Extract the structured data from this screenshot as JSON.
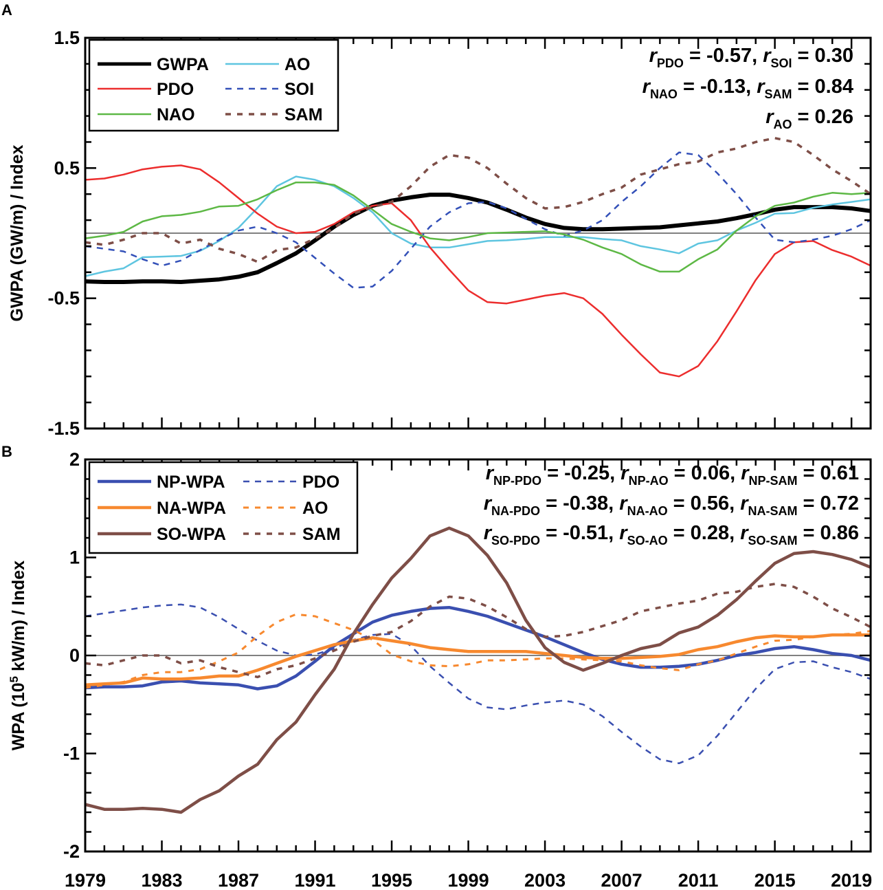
{
  "chart_data": [
    {
      "panel_label": "A",
      "type": "line",
      "ylabel": "GWPA (GW/m) / Index",
      "ylim": [
        -1.5,
        1.5
      ],
      "yticks": [
        -1.5,
        -0.5,
        0.5,
        1.5
      ],
      "ytick_labels": [
        "-1.5",
        "-0.5",
        "0.5",
        "1.5"
      ],
      "xlim": [
        1979,
        2020
      ],
      "zero_line": true,
      "legend": {
        "position": "top-left",
        "entries": [
          "GWPA",
          "AO",
          "PDO",
          "SOI",
          "NAO",
          "SAM"
        ]
      },
      "annotations": [
        [
          {
            "t": "r",
            "i": true
          },
          {
            "t": "PDO",
            "s": true
          },
          {
            "t": " = -0.57, "
          },
          {
            "t": "r",
            "i": true
          },
          {
            "t": "SOI",
            "s": true
          },
          {
            "t": " =   0.30"
          }
        ],
        [
          {
            "t": "r",
            "i": true
          },
          {
            "t": "NAO",
            "s": true
          },
          {
            "t": " = -0.13, "
          },
          {
            "t": "r",
            "i": true
          },
          {
            "t": "SAM",
            "s": true
          },
          {
            "t": " =  0.84"
          }
        ],
        [
          {
            "t": "r",
            "i": true
          },
          {
            "t": "AO",
            "s": true
          },
          {
            "t": " = 0.26"
          }
        ]
      ],
      "x": [
        1979,
        1980,
        1981,
        1982,
        1983,
        1984,
        1985,
        1986,
        1987,
        1988,
        1989,
        1990,
        1991,
        1992,
        1993,
        1994,
        1995,
        1996,
        1997,
        1998,
        1999,
        2000,
        2001,
        2002,
        2003,
        2004,
        2005,
        2006,
        2007,
        2008,
        2009,
        2010,
        2011,
        2012,
        2013,
        2014,
        2015,
        2016,
        2017,
        2018,
        2019,
        2020
      ],
      "series": [
        {
          "name": "GWPA",
          "color": "#000000",
          "width": 6,
          "dash": "",
          "values": [
            -0.37,
            -0.375,
            -0.375,
            -0.37,
            -0.37,
            -0.375,
            -0.365,
            -0.355,
            -0.335,
            -0.3,
            -0.23,
            -0.155,
            -0.055,
            0.05,
            0.14,
            0.21,
            0.25,
            0.275,
            0.295,
            0.295,
            0.27,
            0.235,
            0.18,
            0.12,
            0.07,
            0.04,
            0.03,
            0.03,
            0.035,
            0.04,
            0.045,
            0.06,
            0.075,
            0.09,
            0.115,
            0.145,
            0.18,
            0.2,
            0.2,
            0.2,
            0.19,
            0.17
          ]
        },
        {
          "name": "AO",
          "color": "#5ec5e0",
          "width": 2.5,
          "dash": "",
          "values": [
            -0.33,
            -0.295,
            -0.27,
            -0.185,
            -0.18,
            -0.175,
            -0.135,
            -0.06,
            0.04,
            0.195,
            0.36,
            0.435,
            0.41,
            0.36,
            0.27,
            0.16,
            0.0,
            -0.08,
            -0.11,
            -0.11,
            -0.085,
            -0.06,
            -0.055,
            -0.045,
            -0.03,
            -0.03,
            -0.03,
            -0.045,
            -0.055,
            -0.1,
            -0.125,
            -0.155,
            -0.08,
            -0.055,
            0.02,
            0.08,
            0.15,
            0.155,
            0.195,
            0.22,
            0.24,
            0.26
          ]
        },
        {
          "name": "PDO",
          "color": "#ec2d2d",
          "width": 2.5,
          "dash": "",
          "values": [
            0.41,
            0.42,
            0.45,
            0.49,
            0.51,
            0.52,
            0.49,
            0.39,
            0.27,
            0.15,
            0.05,
            0.0,
            0.01,
            0.07,
            0.16,
            0.21,
            0.23,
            0.1,
            -0.11,
            -0.28,
            -0.44,
            -0.53,
            -0.54,
            -0.51,
            -0.48,
            -0.46,
            -0.5,
            -0.62,
            -0.78,
            -0.93,
            -1.07,
            -1.1,
            -1.02,
            -0.83,
            -0.6,
            -0.36,
            -0.16,
            -0.07,
            -0.06,
            -0.13,
            -0.18,
            -0.25
          ]
        },
        {
          "name": "SOI",
          "color": "#3350b8",
          "width": 2.5,
          "dash": "9,8",
          "values": [
            -0.1,
            -0.12,
            -0.14,
            -0.2,
            -0.25,
            -0.21,
            -0.13,
            -0.05,
            0.02,
            0.05,
            0.0,
            -0.07,
            -0.19,
            -0.31,
            -0.42,
            -0.41,
            -0.29,
            -0.12,
            0.05,
            0.16,
            0.23,
            0.24,
            0.19,
            0.11,
            0.03,
            -0.02,
            0.02,
            0.1,
            0.24,
            0.36,
            0.5,
            0.62,
            0.6,
            0.46,
            0.3,
            0.12,
            -0.05,
            -0.07,
            -0.05,
            -0.02,
            0.03,
            0.1
          ]
        },
        {
          "name": "NAO",
          "color": "#5db845",
          "width": 2.5,
          "dash": "",
          "values": [
            -0.04,
            -0.02,
            0.01,
            0.09,
            0.13,
            0.14,
            0.165,
            0.205,
            0.21,
            0.26,
            0.33,
            0.39,
            0.39,
            0.37,
            0.29,
            0.18,
            0.07,
            0.01,
            -0.04,
            -0.055,
            -0.03,
            0.0,
            0.005,
            0.01,
            0.015,
            -0.01,
            -0.05,
            -0.11,
            -0.16,
            -0.24,
            -0.295,
            -0.295,
            -0.2,
            -0.125,
            0.02,
            0.13,
            0.21,
            0.235,
            0.28,
            0.31,
            0.3,
            0.31
          ]
        },
        {
          "name": "SAM",
          "color": "#7e4e47",
          "width": 3.5,
          "dash": "8,9",
          "values": [
            -0.07,
            -0.09,
            -0.05,
            0.0,
            0.0,
            -0.08,
            -0.05,
            -0.12,
            -0.16,
            -0.22,
            -0.13,
            -0.11,
            -0.04,
            0.04,
            0.15,
            0.2,
            0.24,
            0.36,
            0.51,
            0.6,
            0.58,
            0.5,
            0.38,
            0.27,
            0.19,
            0.2,
            0.24,
            0.3,
            0.35,
            0.45,
            0.49,
            0.53,
            0.55,
            0.62,
            0.65,
            0.7,
            0.73,
            0.7,
            0.6,
            0.49,
            0.4,
            0.3
          ]
        }
      ]
    },
    {
      "panel_label": "B",
      "type": "line",
      "ylabel": "WPA (10⁵ kW/m) / Index",
      "ylabel_parts": {
        "pre": "WPA (10",
        "sup": "5",
        "post": " kW/m) / Index"
      },
      "ylim": [
        -2,
        2
      ],
      "yticks": [
        -2,
        -1,
        0,
        1,
        2
      ],
      "ytick_labels": [
        "-2",
        "-1",
        "0",
        "1",
        "2"
      ],
      "xlim": [
        1979,
        2020
      ],
      "xticks": [
        1979,
        1983,
        1987,
        1991,
        1995,
        1999,
        2003,
        2007,
        2011,
        2015,
        2019
      ],
      "xtick_labels": [
        "1979",
        "1983",
        "1987",
        "1991",
        "1995",
        "1999",
        "2003",
        "2007",
        "2011",
        "2015",
        "2019"
      ],
      "zero_line": true,
      "legend": {
        "position": "top-left",
        "entries": [
          "NP-WPA",
          "PDO",
          "NA-WPA",
          "AO",
          "SO-WPA",
          "SAM"
        ]
      },
      "annotations": [
        [
          {
            "t": "r",
            "i": true
          },
          {
            "t": "NP-PDO",
            "s": true
          },
          {
            "t": " = -0.25, "
          },
          {
            "t": "r",
            "i": true
          },
          {
            "t": "NP-AO",
            "s": true
          },
          {
            "t": " =  0.06, "
          },
          {
            "t": "r",
            "i": true
          },
          {
            "t": "NP-SAM",
            "s": true
          },
          {
            "t": " =  0.61"
          }
        ],
        [
          {
            "t": "r",
            "i": true
          },
          {
            "t": "NA-PDO",
            "s": true
          },
          {
            "t": " = -0.38, "
          },
          {
            "t": "r",
            "i": true
          },
          {
            "t": "NA-AO",
            "s": true
          },
          {
            "t": " =  0.56, "
          },
          {
            "t": "r",
            "i": true
          },
          {
            "t": "NA-SAM",
            "s": true
          },
          {
            "t": " =  0.72"
          }
        ],
        [
          {
            "t": "r",
            "i": true
          },
          {
            "t": "SO-PDO",
            "s": true
          },
          {
            "t": " = -0.51, "
          },
          {
            "t": "r",
            "i": true
          },
          {
            "t": "SO-AO",
            "s": true
          },
          {
            "t": " =  0.28, "
          },
          {
            "t": "r",
            "i": true
          },
          {
            "t": "SO-SAM",
            "s": true
          },
          {
            "t": " =  0.86"
          }
        ]
      ],
      "x": [
        1979,
        1980,
        1981,
        1982,
        1983,
        1984,
        1985,
        1986,
        1987,
        1988,
        1989,
        1990,
        1991,
        1992,
        1993,
        1994,
        1995,
        1996,
        1997,
        1998,
        1999,
        2000,
        2001,
        2002,
        2003,
        2004,
        2005,
        2006,
        2007,
        2008,
        2009,
        2010,
        2011,
        2012,
        2013,
        2014,
        2015,
        2016,
        2017,
        2018,
        2019,
        2020
      ],
      "series": [
        {
          "name": "NP-WPA",
          "color": "#3a4fb0",
          "width": 4.5,
          "dash": "",
          "values": [
            -0.33,
            -0.32,
            -0.32,
            -0.31,
            -0.27,
            -0.26,
            -0.28,
            -0.29,
            -0.3,
            -0.34,
            -0.31,
            -0.21,
            -0.06,
            0.1,
            0.22,
            0.34,
            0.41,
            0.45,
            0.48,
            0.49,
            0.45,
            0.4,
            0.33,
            0.26,
            0.19,
            0.11,
            0.03,
            -0.04,
            -0.09,
            -0.12,
            -0.12,
            -0.11,
            -0.09,
            -0.05,
            0.0,
            0.03,
            0.07,
            0.09,
            0.06,
            0.02,
            0.0,
            -0.05
          ]
        },
        {
          "name": "PDO",
          "color": "#3a4fb0",
          "width": 2.5,
          "dash": "9,8",
          "values": [
            0.4,
            0.43,
            0.46,
            0.49,
            0.51,
            0.52,
            0.49,
            0.39,
            0.27,
            0.15,
            0.05,
            0.0,
            0.01,
            0.07,
            0.16,
            0.21,
            0.22,
            0.1,
            -0.11,
            -0.28,
            -0.44,
            -0.53,
            -0.55,
            -0.51,
            -0.48,
            -0.46,
            -0.5,
            -0.62,
            -0.78,
            -0.93,
            -1.06,
            -1.1,
            -1.02,
            -0.82,
            -0.58,
            -0.34,
            -0.14,
            -0.07,
            -0.06,
            -0.12,
            -0.17,
            -0.24
          ]
        },
        {
          "name": "NA-WPA",
          "color": "#f7892f",
          "width": 4.5,
          "dash": "",
          "values": [
            -0.3,
            -0.29,
            -0.28,
            -0.23,
            -0.24,
            -0.24,
            -0.23,
            -0.21,
            -0.21,
            -0.15,
            -0.08,
            -0.01,
            0.05,
            0.11,
            0.15,
            0.18,
            0.15,
            0.12,
            0.08,
            0.06,
            0.04,
            0.04,
            0.04,
            0.04,
            0.02,
            0.0,
            -0.02,
            -0.03,
            -0.03,
            -0.02,
            -0.01,
            0.01,
            0.06,
            0.09,
            0.14,
            0.18,
            0.2,
            0.19,
            0.19,
            0.21,
            0.21,
            0.21
          ]
        },
        {
          "name": "AO",
          "color": "#f7892f",
          "width": 3,
          "dash": "8,9",
          "values": [
            -0.33,
            -0.3,
            -0.27,
            -0.2,
            -0.17,
            -0.17,
            -0.14,
            -0.06,
            0.03,
            0.2,
            0.34,
            0.42,
            0.4,
            0.33,
            0.26,
            0.16,
            0.01,
            -0.06,
            -0.1,
            -0.11,
            -0.09,
            -0.05,
            -0.05,
            -0.04,
            -0.03,
            -0.03,
            -0.04,
            -0.05,
            -0.06,
            -0.1,
            -0.13,
            -0.15,
            -0.09,
            -0.05,
            0.02,
            0.09,
            0.15,
            0.16,
            0.19,
            0.21,
            0.22,
            0.25
          ]
        },
        {
          "name": "SO-WPA",
          "color": "#7e4e47",
          "width": 4.5,
          "dash": "",
          "values": [
            -1.52,
            -1.57,
            -1.57,
            -1.56,
            -1.57,
            -1.6,
            -1.47,
            -1.38,
            -1.23,
            -1.11,
            -0.86,
            -0.68,
            -0.4,
            -0.14,
            0.22,
            0.52,
            0.79,
            0.99,
            1.22,
            1.3,
            1.22,
            1.02,
            0.74,
            0.36,
            0.08,
            -0.07,
            -0.15,
            -0.08,
            0.0,
            0.07,
            0.11,
            0.23,
            0.29,
            0.41,
            0.57,
            0.76,
            0.94,
            1.04,
            1.06,
            1.03,
            0.98,
            0.9
          ]
        },
        {
          "name": "SAM",
          "color": "#7e4e47",
          "width": 3.5,
          "dash": "8,9",
          "values": [
            -0.08,
            -0.1,
            -0.05,
            0.0,
            0.0,
            -0.08,
            -0.05,
            -0.12,
            -0.17,
            -0.22,
            -0.14,
            -0.1,
            -0.03,
            0.05,
            0.14,
            0.2,
            0.24,
            0.35,
            0.5,
            0.6,
            0.58,
            0.5,
            0.39,
            0.27,
            0.19,
            0.2,
            0.24,
            0.3,
            0.36,
            0.45,
            0.49,
            0.53,
            0.56,
            0.63,
            0.65,
            0.7,
            0.73,
            0.7,
            0.6,
            0.48,
            0.39,
            0.29
          ]
        }
      ]
    }
  ]
}
